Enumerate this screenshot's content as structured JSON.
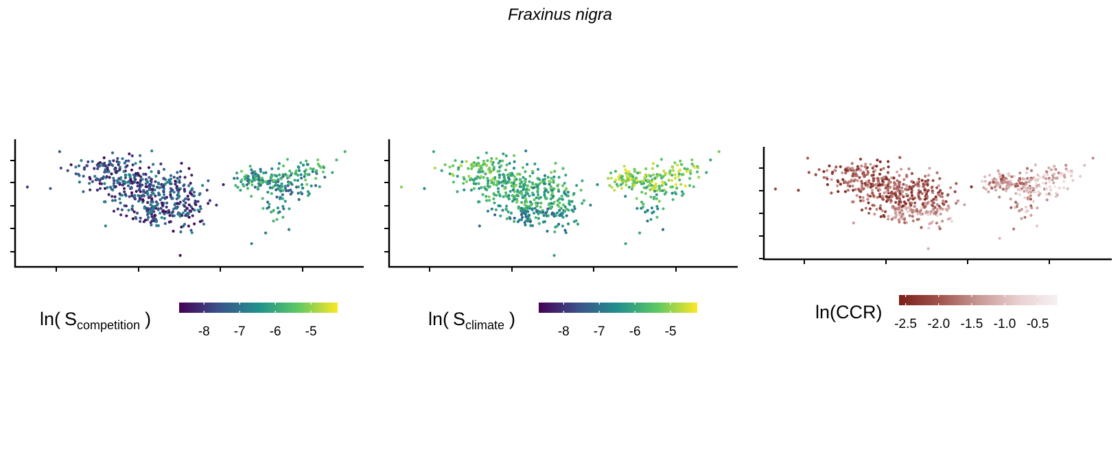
{
  "title": "Fraxinus nigra",
  "chart_data": [
    {
      "type": "scatter",
      "panel": "competition",
      "legend": {
        "label_prefix": "ln(",
        "label_main": "S",
        "label_subscript": "competition",
        "label_suffix": ")",
        "ticks": [
          -8,
          -7,
          -6,
          -5
        ],
        "tick_labels": [
          "-8",
          "-7",
          "-6",
          "-5"
        ],
        "range": [
          -8.7,
          -4.25
        ],
        "palette": [
          "#440154",
          "#3b528b",
          "#21908c",
          "#5dc863",
          "#fde725"
        ]
      },
      "axes": {
        "x_ticks": 4,
        "y_ticks": 5,
        "x_tick_labels": [],
        "y_tick_labels": []
      },
      "points_summary": "approx. 700 occurrence points in two clusters, western values mostly -8 to -7, eastern values -7 to -5"
    },
    {
      "type": "scatter",
      "panel": "climate",
      "legend": {
        "label_prefix": "ln(",
        "label_main": "S",
        "label_subscript": "climate",
        "label_suffix": ")",
        "ticks": [
          -8,
          -7,
          -6,
          -5
        ],
        "tick_labels": [
          "-8",
          "-7",
          "-6",
          "-5"
        ],
        "range": [
          -8.7,
          -4.25
        ],
        "palette": [
          "#440154",
          "#3b528b",
          "#21908c",
          "#5dc863",
          "#fde725"
        ]
      },
      "axes": {
        "x_ticks": 4,
        "y_ticks": 5,
        "x_tick_labels": [],
        "y_tick_labels": []
      },
      "points_summary": "same locations; values mostly -6.5 to -5, brighter (yellow-green) in the north-east cluster"
    },
    {
      "type": "scatter",
      "panel": "ccr",
      "legend": {
        "label_prefix": "",
        "label_main": "ln(CCR)",
        "label_subscript": "",
        "label_suffix": "",
        "ticks": [
          -2.5,
          -2.0,
          -1.5,
          -1.0,
          -0.5
        ],
        "tick_labels": [
          "-2.5",
          "-2.0",
          "-1.5",
          "-1.0",
          "-0.5"
        ],
        "range": [
          -2.6,
          -0.2
        ],
        "palette": [
          "#7a1f1a",
          "#a0524c",
          "#c79895",
          "#e8cfcf",
          "#f7f2f2"
        ]
      },
      "axes": {
        "x_ticks": 4,
        "y_ticks": 5,
        "x_tick_labels": [],
        "y_tick_labels": []
      },
      "points_summary": "same locations; values mostly -2.5 to -1.5 (dark red) in the west, paler toward the south-east"
    }
  ]
}
